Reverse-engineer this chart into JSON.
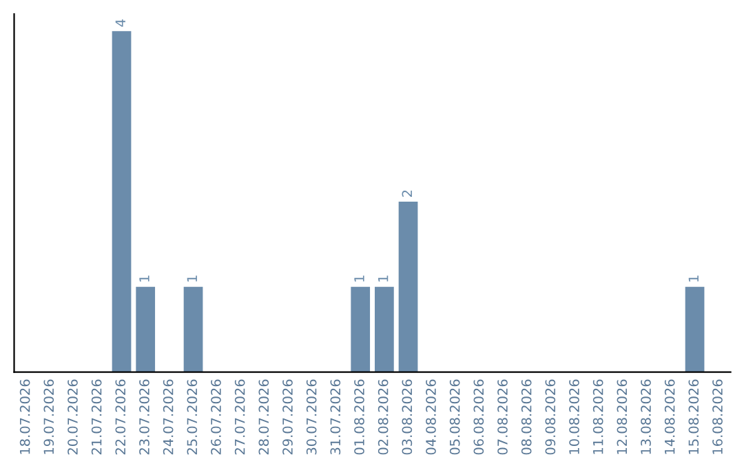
{
  "chart_data": {
    "type": "bar",
    "categories": [
      "18.07.2026",
      "19.07.2026",
      "20.07.2026",
      "21.07.2026",
      "22.07.2026",
      "23.07.2026",
      "24.07.2026",
      "25.07.2026",
      "26.07.2026",
      "27.07.2026",
      "28.07.2026",
      "29.07.2026",
      "30.07.2026",
      "31.07.2026",
      "01.08.2026",
      "02.08.2026",
      "03.08.2026",
      "04.08.2026",
      "05.08.2026",
      "06.08.2026",
      "07.08.2026",
      "08.08.2026",
      "09.08.2026",
      "10.08.2026",
      "11.08.2026",
      "12.08.2026",
      "13.08.2026",
      "14.08.2026",
      "15.08.2026",
      "16.08.2026"
    ],
    "values": [
      0,
      0,
      0,
      0,
      4,
      1,
      0,
      1,
      0,
      0,
      0,
      0,
      0,
      0,
      1,
      1,
      2,
      0,
      0,
      0,
      0,
      0,
      0,
      0,
      0,
      0,
      0,
      0,
      1,
      0
    ],
    "value_labels": [
      null,
      null,
      null,
      null,
      "4",
      "1",
      null,
      "1",
      null,
      null,
      null,
      null,
      null,
      null,
      "1",
      "1",
      "2",
      null,
      null,
      null,
      null,
      null,
      null,
      null,
      null,
      null,
      null,
      null,
      "1",
      null
    ],
    "color": "#6b8cab",
    "grid": false,
    "legend": false,
    "tick_labels": "x"
  }
}
